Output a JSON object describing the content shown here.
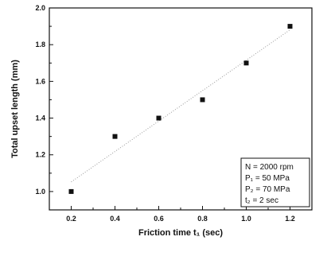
{
  "chart_data": {
    "type": "scatter",
    "title": "",
    "xlabel": "Friction time t₁ (sec)",
    "ylabel": "Total upset length (mm)",
    "xlim": [
      0.1,
      1.3
    ],
    "ylim": [
      0.9,
      2.0
    ],
    "xticks": [
      "0.2",
      "0.4",
      "0.6",
      "0.8",
      "1.0",
      "1.2"
    ],
    "yticks": [
      "1.0",
      "1.2",
      "1.4",
      "1.6",
      "1.8",
      "2.0"
    ],
    "grid": false,
    "trendline": "dotted linear fit",
    "x": [
      0.2,
      0.4,
      0.6,
      0.8,
      1.0,
      1.2
    ],
    "y": [
      1.0,
      1.3,
      1.4,
      1.5,
      1.7,
      1.9
    ],
    "legend_placement": "bottom-right",
    "legend_lines": [
      "N  = 2000 rpm",
      "P₁ = 50 MPa",
      "P₂ = 70 MPa",
      "t₂ = 2 sec"
    ]
  }
}
